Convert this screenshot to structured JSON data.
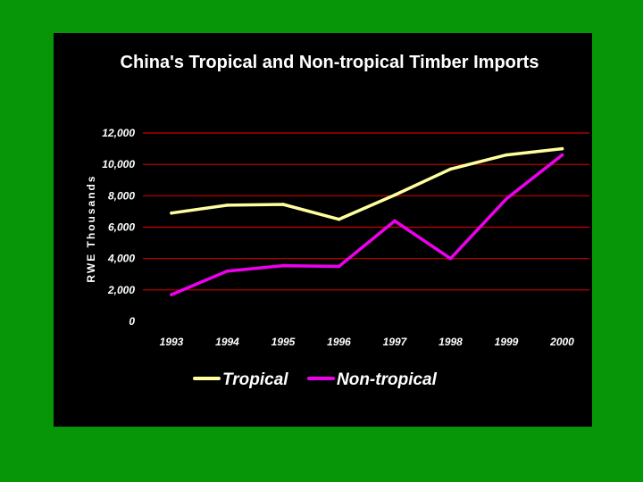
{
  "chart_data": {
    "type": "line",
    "title": "China's Tropical and Non-tropical Timber Imports",
    "ylabel": "RWE Thousands",
    "xlabel": "",
    "categories": [
      "1993",
      "1994",
      "1995",
      "1996",
      "1997",
      "1998",
      "1999",
      "2000"
    ],
    "y_ticks": [
      "0",
      "2,000",
      "4,000",
      "6,000",
      "8,000",
      "10,000",
      "12,000"
    ],
    "ylim": [
      0,
      12000
    ],
    "grid": true,
    "legend_position": "bottom",
    "series": [
      {
        "name": "Tropical",
        "color": "#ffffa0",
        "values": [
          6900,
          7400,
          7450,
          6500,
          8050,
          9700,
          10600,
          11000
        ]
      },
      {
        "name": "Non-tropical",
        "color": "#ee00ee",
        "values": [
          1700,
          3200,
          3550,
          3500,
          6400,
          4000,
          7800,
          10600
        ]
      }
    ],
    "colors": {
      "background": "#079607",
      "plot_background": "#000000",
      "grid": "#cc0000",
      "text": "#ffffff"
    }
  }
}
